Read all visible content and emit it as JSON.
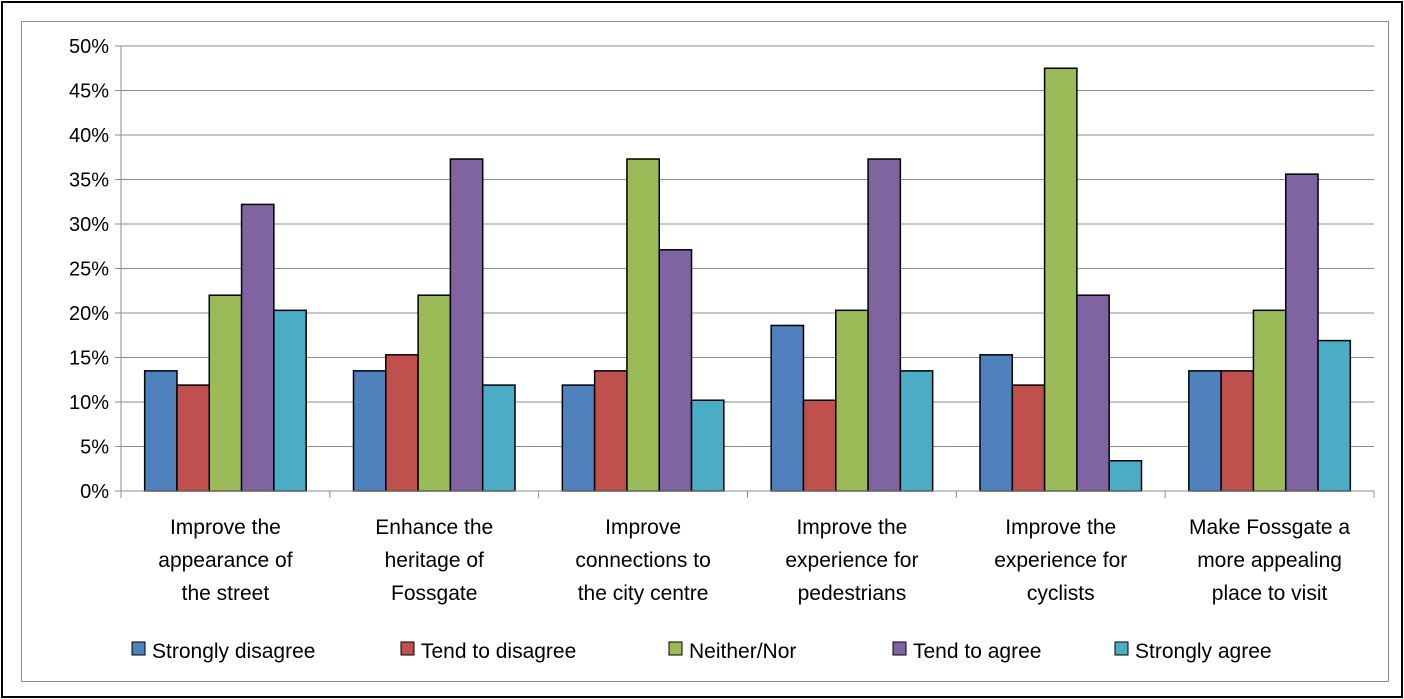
{
  "chart_data": {
    "type": "bar",
    "categories": [
      "Improve the appearance of the street",
      "Enhance the heritage of Fossgate",
      "Improve connections to the city centre",
      "Improve the experience for pedestrians",
      "Improve the experience for cyclists",
      "Make Fossgate a more appealing place to visit"
    ],
    "category_lines": [
      [
        "Improve the",
        "appearance of",
        "the street"
      ],
      [
        "Enhance the",
        "heritage of",
        "Fossgate"
      ],
      [
        "Improve",
        "connections to",
        "the city centre"
      ],
      [
        "Improve the",
        "experience for",
        "pedestrians"
      ],
      [
        "Improve the",
        "experience for",
        "cyclists"
      ],
      [
        "Make Fossgate  a",
        "more appealing",
        "place to visit"
      ]
    ],
    "series": [
      {
        "name": "Strongly disagree",
        "color": "#4f81bd",
        "values": [
          13.5,
          13.5,
          11.9,
          18.6,
          15.3,
          13.5
        ]
      },
      {
        "name": "Tend to disagree",
        "color": "#c0504d",
        "values": [
          11.9,
          15.3,
          13.5,
          10.2,
          11.9,
          13.5
        ]
      },
      {
        "name": "Neither/Nor",
        "color": "#9bbb59",
        "values": [
          22.0,
          22.0,
          37.3,
          20.3,
          47.5,
          20.3
        ]
      },
      {
        "name": "Tend to agree",
        "color": "#8064a2",
        "values": [
          32.2,
          37.3,
          27.1,
          37.3,
          22.0,
          35.6
        ]
      },
      {
        "name": "Strongly agree",
        "color": "#4bacc6",
        "values": [
          20.3,
          11.9,
          10.2,
          13.5,
          3.4,
          16.9
        ]
      }
    ],
    "ylim": [
      0,
      50
    ],
    "y_ticks": [
      0,
      5,
      10,
      15,
      20,
      25,
      30,
      35,
      40,
      45,
      50
    ],
    "y_tick_labels": [
      "0%",
      "5%",
      "10%",
      "15%",
      "20%",
      "25%",
      "30%",
      "35%",
      "40%",
      "45%",
      "50%"
    ],
    "grid": true,
    "legend_position": "bottom",
    "title": "",
    "xlabel": "",
    "ylabel": ""
  }
}
